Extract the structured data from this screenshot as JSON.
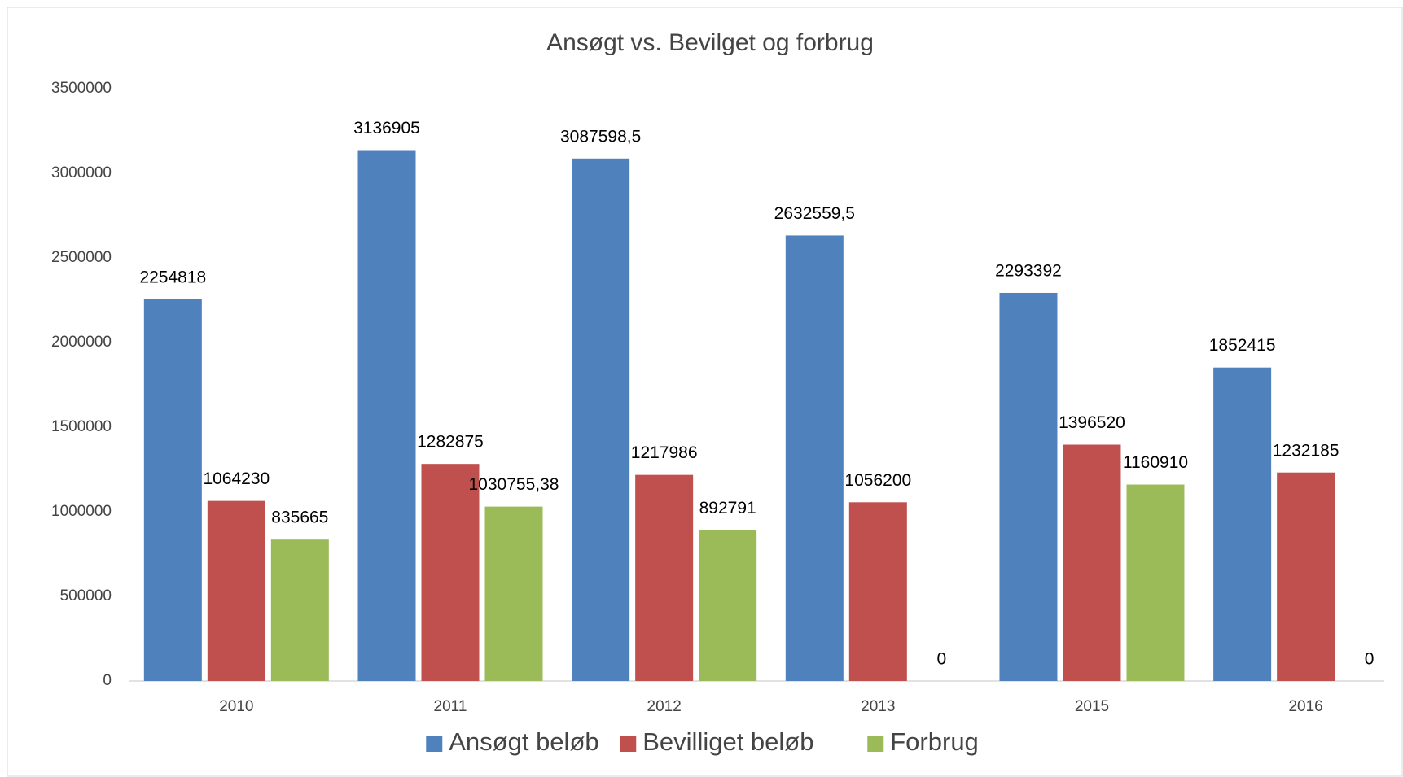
{
  "chart_data": {
    "type": "bar",
    "title": "Ansøgt vs. Bevilget og forbrug",
    "categories": [
      "2010",
      "2011",
      "2012",
      "2013",
      "2015",
      "2016"
    ],
    "series": [
      {
        "name": "Ansøgt beløb",
        "color": "#4f81bd",
        "values": [
          2254818,
          3136905,
          3087598.5,
          2632559.5,
          2293392,
          1852415
        ],
        "value_labels": [
          "2254818",
          "3136905",
          "3087598,5",
          "2632559,5",
          "2293392",
          "1852415"
        ]
      },
      {
        "name": "Bevilliget beløb",
        "color": "#c0504d",
        "values": [
          1064230,
          1282875,
          1217986,
          1056200,
          1396520,
          1232185
        ]
      },
      {
        "name": "Forbrug",
        "color": "#9bbb59",
        "values": [
          835665,
          1030755.38,
          892791,
          0,
          1160910,
          0
        ],
        "value_labels": [
          "835665",
          "1030755,38",
          "892791",
          "0",
          "1160910",
          "0"
        ]
      }
    ],
    "ylim": [
      0,
      3500000
    ],
    "yticks": [
      0,
      500000,
      1000000,
      1500000,
      2000000,
      2500000,
      3000000,
      3500000
    ],
    "legend": "bottom"
  }
}
